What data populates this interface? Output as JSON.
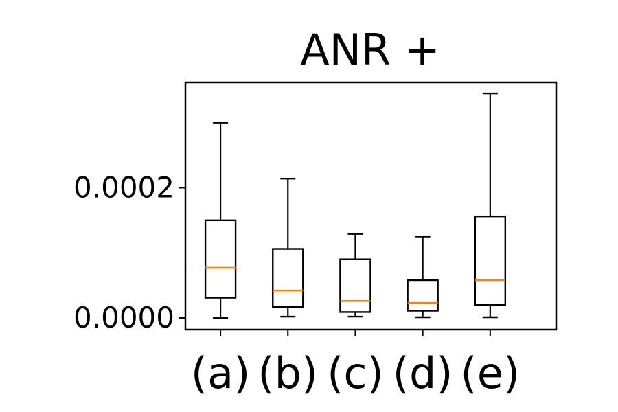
{
  "chart_data": {
    "type": "boxplot",
    "title": "ANR +",
    "xlabel": "",
    "ylabel": "",
    "categories": [
      "(a)",
      "(b)",
      "(c)",
      "(d)",
      "(e)"
    ],
    "boxes": [
      {
        "label": "(a)",
        "whisker_low": 0.0,
        "q1": 3.1e-05,
        "median": 7.7e-05,
        "q3": 0.00015,
        "whisker_high": 0.0003
      },
      {
        "label": "(b)",
        "whisker_low": 2e-06,
        "q1": 1.7e-05,
        "median": 4.2e-05,
        "q3": 0.000106,
        "whisker_high": 0.000214
      },
      {
        "label": "(c)",
        "whisker_low": 2e-06,
        "q1": 9e-06,
        "median": 2.6e-05,
        "q3": 9e-05,
        "whisker_high": 0.000129
      },
      {
        "label": "(d)",
        "whisker_low": 1e-06,
        "q1": 1.1e-05,
        "median": 2.3e-05,
        "q3": 5.8e-05,
        "whisker_high": 0.000125
      },
      {
        "label": "(e)",
        "whisker_low": 1e-06,
        "q1": 2e-05,
        "median": 5.8e-05,
        "q3": 0.000156,
        "whisker_high": 0.000345
      }
    ],
    "ylim": [
      -1.8e-05,
      0.000362
    ],
    "yticks": [
      0.0,
      0.0002
    ],
    "ytick_labels": [
      "0.0000",
      "0.0002"
    ],
    "grid": false,
    "colors": {
      "box": "#000000",
      "median": "#ff7f0e"
    }
  }
}
